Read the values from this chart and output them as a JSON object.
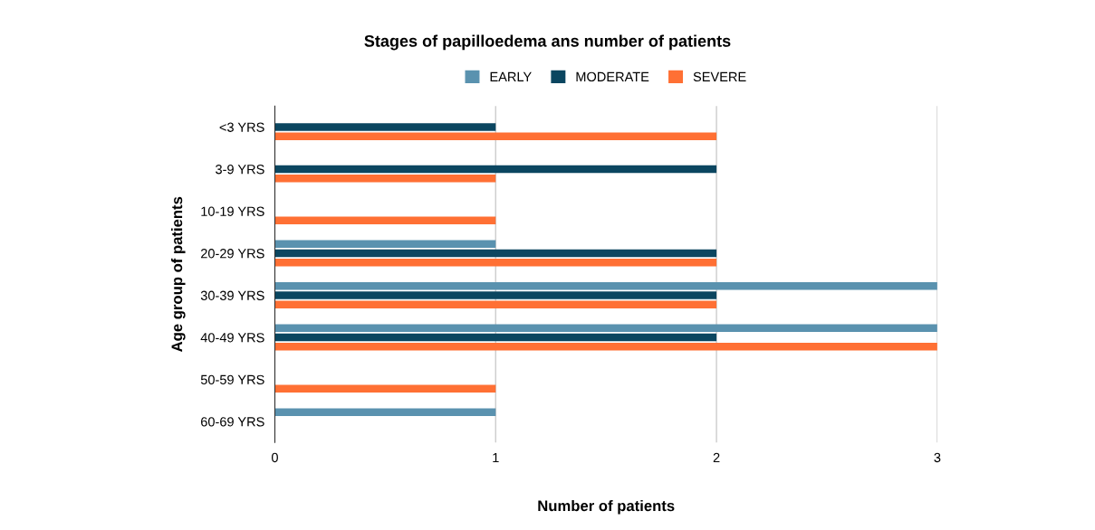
{
  "chart_data": {
    "type": "bar",
    "orientation": "horizontal",
    "title": "Stages of papilloedema ans number of patients",
    "xlabel": "Number of patients",
    "ylabel": "Age group of patients",
    "categories": [
      "<3 YRS",
      "3-9 YRS",
      "10-19 YRS",
      "20-29 YRS",
      "30-39 YRS",
      "40-49 YRS",
      "50-59 YRS",
      "60-69 YRS"
    ],
    "series": [
      {
        "name": "EARLY",
        "color": "#5a92af",
        "values": [
          0,
          0,
          0,
          1,
          3,
          3,
          0,
          1
        ]
      },
      {
        "name": "MODERATE",
        "color": "#0b4660",
        "values": [
          1,
          2,
          0,
          2,
          2,
          2,
          0,
          0
        ]
      },
      {
        "name": "SEVERE",
        "color": "#ff7034",
        "values": [
          2,
          1,
          1,
          2,
          2,
          3,
          1,
          0
        ]
      }
    ],
    "xlim": [
      0,
      3
    ],
    "xticks": [
      0,
      1,
      2,
      3
    ],
    "grid": "x",
    "legend": "top"
  }
}
